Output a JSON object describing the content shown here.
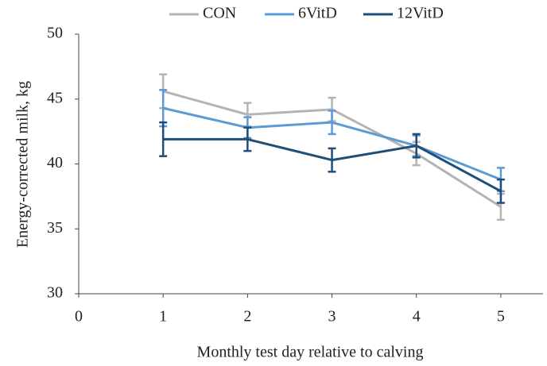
{
  "chart_data": {
    "type": "line",
    "x_label": "Monthly test day relative to calving",
    "y_label": "Energy-corrected milk, kg",
    "x": [
      1,
      2,
      3,
      4,
      5
    ],
    "xlim": [
      0,
      5.5
    ],
    "xticks": [
      0,
      1,
      2,
      3,
      4,
      5
    ],
    "ylim": [
      30,
      50
    ],
    "yticks": [
      30,
      35,
      40,
      45,
      50
    ],
    "series": [
      {
        "name": "CON",
        "color": "#b4b4b4",
        "values": [
          45.6,
          43.8,
          44.2,
          40.8,
          36.7
        ],
        "errors": [
          1.3,
          0.9,
          0.9,
          0.9,
          1.0
        ]
      },
      {
        "name": "6VitD",
        "color": "#5b9bd5",
        "values": [
          44.3,
          42.8,
          43.2,
          41.4,
          38.8
        ],
        "errors": [
          1.4,
          0.8,
          0.9,
          0.8,
          0.9
        ]
      },
      {
        "name": "12VitD",
        "color": "#1f4e79",
        "values": [
          41.9,
          41.9,
          40.3,
          41.4,
          37.9
        ],
        "errors": [
          1.3,
          0.9,
          0.9,
          0.9,
          0.9
        ]
      }
    ]
  }
}
